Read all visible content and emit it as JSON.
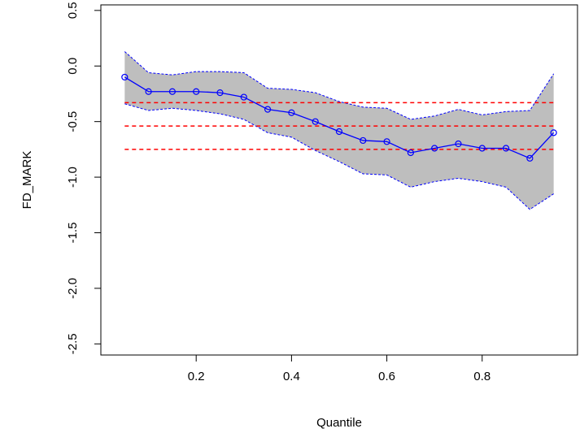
{
  "chart_data": {
    "type": "line",
    "xlabel": "Quantile",
    "ylabel": "FD_MARK",
    "xlim": [
      0.0,
      1.0
    ],
    "ylim": [
      -2.6,
      0.55
    ],
    "x_ticks": [
      0.2,
      0.4,
      0.6,
      0.8
    ],
    "x_tick_labels": [
      "0.2",
      "0.4",
      "0.6",
      "0.8"
    ],
    "y_ticks": [
      0.5,
      0.0,
      -0.5,
      -1.0,
      -1.5,
      -2.0,
      -2.5
    ],
    "y_tick_labels": [
      "0.5",
      "0.0",
      "-0.5",
      "-1.0",
      "-1.5",
      "-2.0",
      "-2.5"
    ],
    "grid": false,
    "colors": {
      "band": "#bebebe",
      "band_border": "#0000ff",
      "series": "#0000ff",
      "ref_lines": "#ff0000"
    },
    "quantiles": [
      0.05,
      0.1,
      0.15,
      0.2,
      0.25,
      0.3,
      0.35,
      0.4,
      0.45,
      0.5,
      0.55,
      0.6,
      0.65,
      0.7,
      0.75,
      0.8,
      0.85,
      0.9,
      0.95
    ],
    "series": [
      {
        "values": [
          -0.1,
          -0.23,
          -0.23,
          -0.23,
          -0.24,
          -0.28,
          -0.39,
          -0.42,
          -0.5,
          -0.59,
          -0.67,
          -0.68,
          -0.78,
          -0.74,
          -0.7,
          -0.74,
          -0.74,
          -0.83,
          -0.6
        ]
      }
    ],
    "band": {
      "upper": [
        0.13,
        -0.06,
        -0.08,
        -0.05,
        -0.05,
        -0.06,
        -0.2,
        -0.21,
        -0.24,
        -0.32,
        -0.37,
        -0.38,
        -0.48,
        -0.45,
        -0.39,
        -0.44,
        -0.41,
        -0.4,
        -0.07
      ],
      "lower": [
        -0.34,
        -0.4,
        -0.38,
        -0.4,
        -0.43,
        -0.48,
        -0.6,
        -0.64,
        -0.76,
        -0.86,
        -0.97,
        -0.98,
        -1.09,
        -1.04,
        -1.01,
        -1.04,
        -1.09,
        -1.29,
        -1.15
      ]
    },
    "reference_lines": [
      -0.33,
      -0.54,
      -0.75
    ]
  }
}
